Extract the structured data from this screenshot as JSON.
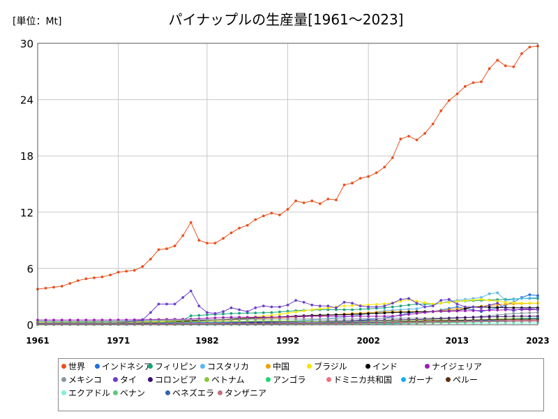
{
  "chart_data": {
    "type": "line",
    "title": "パイナップルの生産量[1961～2023]",
    "unit_label": "[単位：Mt]",
    "xlabel": "",
    "ylabel": "",
    "xlim": [
      1961,
      2023
    ],
    "ylim": [
      0,
      30
    ],
    "x_ticks": [
      "1961",
      "1971",
      "1982",
      "1992",
      "2002",
      "2013",
      "2023"
    ],
    "y_ticks": [
      "0",
      "6",
      "12",
      "18",
      "24",
      "30"
    ],
    "grid": true,
    "legend_position": "bottom",
    "series": [
      {
        "name": "世界",
        "color": "#e8501e",
        "anchors": [
          [
            1961,
            3.8
          ],
          [
            1962,
            3.9
          ],
          [
            1963,
            4.0
          ],
          [
            1964,
            4.1
          ],
          [
            1965,
            4.4
          ],
          [
            1966,
            4.7
          ],
          [
            1967,
            4.9
          ],
          [
            1968,
            5.0
          ],
          [
            1969,
            5.1
          ],
          [
            1970,
            5.3
          ],
          [
            1971,
            5.6
          ],
          [
            1972,
            5.7
          ],
          [
            1973,
            5.8
          ],
          [
            1974,
            6.2
          ],
          [
            1975,
            7.0
          ],
          [
            1976,
            8.0
          ],
          [
            1977,
            8.1
          ],
          [
            1978,
            8.4
          ],
          [
            1979,
            9.5
          ],
          [
            1980,
            10.9
          ],
          [
            1981,
            9.0
          ],
          [
            1982,
            8.7
          ],
          [
            1983,
            8.7
          ],
          [
            1984,
            9.2
          ],
          [
            1985,
            9.8
          ],
          [
            1986,
            10.3
          ],
          [
            1987,
            10.6
          ],
          [
            1988,
            11.2
          ],
          [
            1989,
            11.6
          ],
          [
            1990,
            11.9
          ],
          [
            1991,
            11.7
          ],
          [
            1992,
            12.3
          ],
          [
            1993,
            13.2
          ],
          [
            1994,
            13.0
          ],
          [
            1995,
            13.2
          ],
          [
            1996,
            12.9
          ],
          [
            1997,
            13.4
          ],
          [
            1998,
            13.3
          ],
          [
            1999,
            14.9
          ],
          [
            2000,
            15.1
          ],
          [
            2001,
            15.6
          ],
          [
            2002,
            15.8
          ],
          [
            2003,
            16.2
          ],
          [
            2004,
            16.8
          ],
          [
            2005,
            17.8
          ],
          [
            2006,
            19.8
          ],
          [
            2007,
            20.1
          ],
          [
            2008,
            19.7
          ],
          [
            2009,
            20.4
          ],
          [
            2010,
            21.4
          ],
          [
            2011,
            22.8
          ],
          [
            2012,
            23.9
          ],
          [
            2013,
            24.6
          ],
          [
            2014,
            25.4
          ],
          [
            2015,
            25.8
          ],
          [
            2016,
            25.9
          ],
          [
            2017,
            27.3
          ],
          [
            2018,
            28.2
          ],
          [
            2019,
            27.6
          ],
          [
            2020,
            27.5
          ],
          [
            2021,
            28.9
          ],
          [
            2022,
            29.6
          ],
          [
            2023,
            29.7
          ]
        ]
      },
      {
        "name": "インドネシア",
        "color": "#1f6fe0",
        "anchors": [
          [
            1961,
            0.2
          ],
          [
            1971,
            0.15
          ],
          [
            1980,
            0.25
          ],
          [
            1990,
            0.35
          ],
          [
            2000,
            0.4
          ],
          [
            2004,
            0.7
          ],
          [
            2008,
            1.4
          ],
          [
            2010,
            1.4
          ],
          [
            2013,
            1.9
          ],
          [
            2016,
            1.4
          ],
          [
            2018,
            1.8
          ],
          [
            2020,
            2.4
          ],
          [
            2021,
            2.9
          ],
          [
            2022,
            3.2
          ],
          [
            2023,
            3.1
          ]
        ]
      },
      {
        "name": "フィリピン",
        "color": "#1aa47a",
        "anchors": [
          [
            1961,
            0.35
          ],
          [
            1970,
            0.35
          ],
          [
            1979,
            0.5
          ],
          [
            1980,
            0.95
          ],
          [
            1985,
            1.2
          ],
          [
            1990,
            1.3
          ],
          [
            1993,
            1.5
          ],
          [
            1996,
            1.6
          ],
          [
            2000,
            1.6
          ],
          [
            2004,
            1.8
          ],
          [
            2008,
            2.2
          ],
          [
            2010,
            2.2
          ],
          [
            2013,
            2.5
          ],
          [
            2016,
            2.6
          ],
          [
            2019,
            2.7
          ],
          [
            2021,
            2.8
          ],
          [
            2023,
            2.8
          ]
        ]
      },
      {
        "name": "コスタリカ",
        "color": "#5ab8f0",
        "anchors": [
          [
            1961,
            0.02
          ],
          [
            1980,
            0.05
          ],
          [
            1990,
            0.3
          ],
          [
            1995,
            0.5
          ],
          [
            2000,
            0.9
          ],
          [
            2004,
            1.5
          ],
          [
            2008,
            1.7
          ],
          [
            2012,
            2.5
          ],
          [
            2016,
            2.9
          ],
          [
            2017,
            3.3
          ],
          [
            2018,
            3.4
          ],
          [
            2019,
            2.6
          ],
          [
            2021,
            2.8
          ],
          [
            2023,
            2.9
          ]
        ]
      },
      {
        "name": "中国",
        "color": "#f0a000",
        "anchors": [
          [
            1961,
            0.2
          ],
          [
            1975,
            0.35
          ],
          [
            1985,
            0.5
          ],
          [
            1990,
            0.7
          ],
          [
            1995,
            0.9
          ],
          [
            2000,
            1.2
          ],
          [
            2005,
            1.4
          ],
          [
            2010,
            1.4
          ],
          [
            2015,
            1.9
          ],
          [
            2019,
            2.2
          ],
          [
            2023,
            2.3
          ]
        ]
      },
      {
        "name": "ブラジル",
        "color": "#f5e600",
        "anchors": [
          [
            1961,
            0.25
          ],
          [
            1970,
            0.3
          ],
          [
            1980,
            0.4
          ],
          [
            1985,
            0.6
          ],
          [
            1990,
            1.0
          ],
          [
            1995,
            1.6
          ],
          [
            1999,
            2.0
          ],
          [
            2002,
            2.1
          ],
          [
            2005,
            2.3
          ],
          [
            2007,
            2.7
          ],
          [
            2008,
            2.5
          ],
          [
            2010,
            2.2
          ],
          [
            2013,
            2.5
          ],
          [
            2016,
            2.7
          ],
          [
            2019,
            2.4
          ],
          [
            2021,
            2.3
          ],
          [
            2023,
            2.3
          ]
        ]
      },
      {
        "name": "インド",
        "color": "#000000",
        "anchors": [
          [
            1961,
            0.1
          ],
          [
            1975,
            0.2
          ],
          [
            1985,
            0.6
          ],
          [
            1990,
            0.8
          ],
          [
            1995,
            1.0
          ],
          [
            2000,
            1.1
          ],
          [
            2005,
            1.3
          ],
          [
            2010,
            1.4
          ],
          [
            2013,
            1.5
          ],
          [
            2015,
            1.9
          ],
          [
            2020,
            1.8
          ],
          [
            2023,
            1.8
          ]
        ]
      },
      {
        "name": "ナイジェリア",
        "color": "#9c1fb5",
        "anchors": [
          [
            1961,
            0.5
          ],
          [
            1970,
            0.5
          ],
          [
            1980,
            0.6
          ],
          [
            1985,
            0.8
          ],
          [
            1990,
            0.8
          ],
          [
            1995,
            0.9
          ],
          [
            2000,
            0.9
          ],
          [
            2005,
            0.9
          ],
          [
            2010,
            1.4
          ],
          [
            2015,
            1.5
          ],
          [
            2020,
            1.6
          ],
          [
            2023,
            1.6
          ]
        ]
      },
      {
        "name": "メキシコ",
        "color": "#8a96a0",
        "anchors": [
          [
            1961,
            0.2
          ],
          [
            1970,
            0.3
          ],
          [
            1980,
            0.5
          ],
          [
            1990,
            0.6
          ],
          [
            2000,
            0.6
          ],
          [
            2005,
            0.7
          ],
          [
            2010,
            0.7
          ],
          [
            2015,
            0.8
          ],
          [
            2020,
            1.2
          ],
          [
            2023,
            1.3
          ]
        ]
      },
      {
        "name": "タイ",
        "color": "#6a3fc8",
        "anchors": [
          [
            1961,
            0.1
          ],
          [
            1971,
            0.2
          ],
          [
            1974,
            0.5
          ],
          [
            1975,
            1.3
          ],
          [
            1976,
            2.2
          ],
          [
            1977,
            2.2
          ],
          [
            1978,
            2.2
          ],
          [
            1979,
            2.9
          ],
          [
            1980,
            3.6
          ],
          [
            1981,
            2.0
          ],
          [
            1982,
            1.3
          ],
          [
            1983,
            1.2
          ],
          [
            1984,
            1.4
          ],
          [
            1985,
            1.8
          ],
          [
            1986,
            1.6
          ],
          [
            1987,
            1.4
          ],
          [
            1988,
            1.8
          ],
          [
            1989,
            2.0
          ],
          [
            1990,
            1.9
          ],
          [
            1991,
            1.9
          ],
          [
            1992,
            2.1
          ],
          [
            1993,
            2.6
          ],
          [
            1994,
            2.4
          ],
          [
            1995,
            2.1
          ],
          [
            1996,
            2.0
          ],
          [
            1997,
            2.0
          ],
          [
            1998,
            1.8
          ],
          [
            1999,
            2.4
          ],
          [
            2000,
            2.3
          ],
          [
            2001,
            2.0
          ],
          [
            2002,
            1.9
          ],
          [
            2003,
            1.9
          ],
          [
            2004,
            2.0
          ],
          [
            2005,
            2.3
          ],
          [
            2006,
            2.7
          ],
          [
            2007,
            2.8
          ],
          [
            2008,
            2.3
          ],
          [
            2009,
            1.9
          ],
          [
            2010,
            2.0
          ],
          [
            2011,
            2.6
          ],
          [
            2012,
            2.7
          ],
          [
            2013,
            2.2
          ],
          [
            2014,
            1.9
          ],
          [
            2015,
            1.9
          ],
          [
            2016,
            1.8
          ],
          [
            2017,
            2.1
          ],
          [
            2018,
            2.3
          ],
          [
            2019,
            1.7
          ],
          [
            2020,
            1.5
          ],
          [
            2021,
            1.7
          ],
          [
            2022,
            1.7
          ],
          [
            2023,
            1.6
          ]
        ]
      },
      {
        "name": "コロンビア",
        "color": "#3d1070",
        "anchors": [
          [
            1961,
            0.1
          ],
          [
            1980,
            0.1
          ],
          [
            1990,
            0.3
          ],
          [
            2000,
            0.4
          ],
          [
            2005,
            0.5
          ],
          [
            2010,
            0.6
          ],
          [
            2015,
            0.8
          ],
          [
            2020,
            0.9
          ],
          [
            2023,
            0.9
          ]
        ]
      },
      {
        "name": "ベトナム",
        "color": "#8cc63f",
        "anchors": [
          [
            1961,
            0.1
          ],
          [
            1980,
            0.3
          ],
          [
            1990,
            0.4
          ],
          [
            2000,
            0.3
          ],
          [
            2010,
            0.5
          ],
          [
            2015,
            0.5
          ],
          [
            2020,
            0.7
          ],
          [
            2023,
            0.7
          ]
        ]
      },
      {
        "name": "アンゴラ",
        "color": "#1ad86a",
        "anchors": [
          [
            1961,
            0.05
          ],
          [
            1990,
            0.05
          ],
          [
            2000,
            0.1
          ],
          [
            2010,
            0.3
          ],
          [
            2015,
            0.5
          ],
          [
            2023,
            0.6
          ]
        ]
      },
      {
        "name": "ドミニカ共和国",
        "color": "#f07080",
        "anchors": [
          [
            1961,
            0.05
          ],
          [
            1990,
            0.1
          ],
          [
            2000,
            0.1
          ],
          [
            2010,
            0.3
          ],
          [
            2015,
            0.4
          ],
          [
            2023,
            0.5
          ]
        ]
      },
      {
        "name": "ガーナ",
        "color": "#10b0f0",
        "anchors": [
          [
            1961,
            0.02
          ],
          [
            1990,
            0.02
          ],
          [
            2000,
            0.1
          ],
          [
            2005,
            0.1
          ],
          [
            2010,
            0.2
          ],
          [
            2015,
            0.4
          ],
          [
            2023,
            0.7
          ]
        ]
      },
      {
        "name": "ペルー",
        "color": "#5a3010",
        "anchors": [
          [
            1961,
            0.1
          ],
          [
            1990,
            0.15
          ],
          [
            2000,
            0.2
          ],
          [
            2010,
            0.4
          ],
          [
            2015,
            0.5
          ],
          [
            2023,
            0.6
          ]
        ]
      },
      {
        "name": "エクアドル",
        "color": "#7ef0d8",
        "anchors": [
          [
            1961,
            0.05
          ],
          [
            1990,
            0.05
          ],
          [
            2000,
            0.1
          ],
          [
            2010,
            0.2
          ],
          [
            2015,
            0.15
          ],
          [
            2023,
            0.2
          ]
        ]
      },
      {
        "name": "ベナン",
        "color": "#60c878",
        "anchors": [
          [
            1961,
            0.02
          ],
          [
            1990,
            0.05
          ],
          [
            2000,
            0.1
          ],
          [
            2010,
            0.2
          ],
          [
            2015,
            0.3
          ],
          [
            2023,
            0.4
          ]
        ]
      },
      {
        "name": "ベネズエラ",
        "color": "#3a60b0",
        "anchors": [
          [
            1961,
            0.1
          ],
          [
            1980,
            0.15
          ],
          [
            1990,
            0.2
          ],
          [
            2000,
            0.25
          ],
          [
            2010,
            0.3
          ],
          [
            2015,
            0.4
          ],
          [
            2023,
            0.4
          ]
        ]
      },
      {
        "name": "タンザニア",
        "color": "#c07080",
        "anchors": [
          [
            1961,
            0.05
          ],
          [
            1990,
            0.1
          ],
          [
            2000,
            0.15
          ],
          [
            2010,
            0.3
          ],
          [
            2015,
            0.35
          ],
          [
            2023,
            0.4
          ]
        ]
      }
    ]
  }
}
